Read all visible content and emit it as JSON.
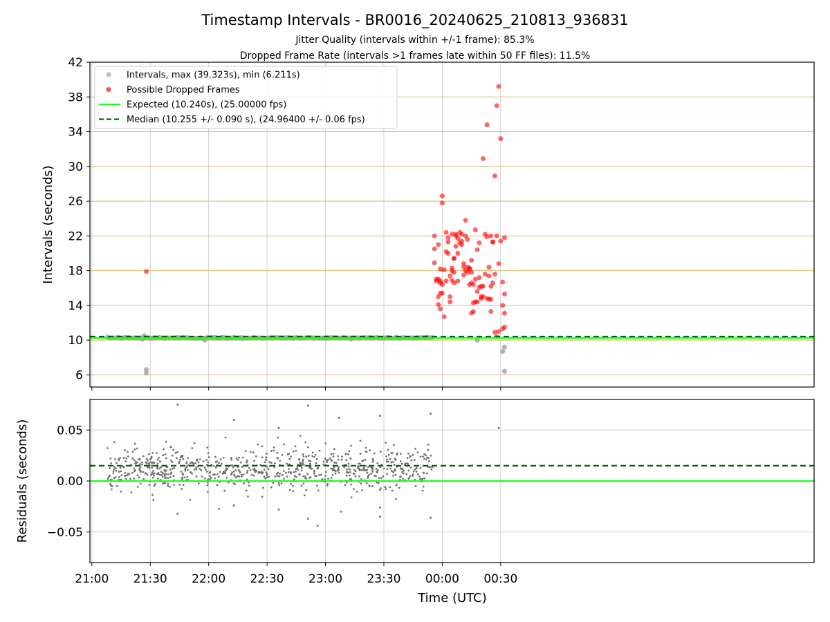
{
  "figure": {
    "title": "Timestamp Intervals - BR0016_20240625_210813_936831",
    "subtitle_1": "Jitter Quality (intervals within +/-1 frame): 85.3%",
    "subtitle_2": "Dropped Frame Rate (intervals >1 frames late within 50 FF files): 11.5%",
    "colors": {
      "intervals": "#a0a0a0",
      "dropped": "#ff0000",
      "expected": "#19ff19",
      "median": "#006400",
      "hgrid_top": "#d8b86a",
      "grid": "#cfcfcf",
      "residual_points": "#707070"
    }
  },
  "chart_data": [
    {
      "type": "scatter",
      "name": "intervals",
      "ylabel": "Intervals (seconds)",
      "xlabel": "",
      "ylim": [
        4.6,
        42
      ],
      "yticks": [
        6,
        10,
        14,
        18,
        22,
        26,
        30,
        34,
        38,
        42
      ],
      "ytick_labels": [
        "6",
        "10",
        "14",
        "18",
        "22",
        "26",
        "30",
        "34",
        "38",
        "42"
      ],
      "xlim_minutes_after_2100": [
        -1,
        371
      ],
      "grid": true,
      "legend_position": "top-left",
      "legend": [
        {
          "label": "Intervals, max (39.323s), min (6.211s)",
          "marker": "circle",
          "color": "#a0a0a0"
        },
        {
          "label": "Possible Dropped Frames",
          "marker": "circle",
          "color": "#ff0000"
        },
        {
          "label": "Expected (10.240s), (25.00000 fps)",
          "marker": "solid-line",
          "color": "#19ff19"
        },
        {
          "label": "Median (10.255 +/- 0.090 s), (24.96400 +/- 0.06 fps)",
          "marker": "dashed-line",
          "color": "#006400"
        }
      ],
      "expected_value": 10.24,
      "median_value": 10.255,
      "series": [
        {
          "name": "Intervals, max (39.323s), min (6.211s)",
          "normal_band": {
            "x_start": "21:08",
            "x_end": "23:55",
            "y": 10.26,
            "count": 981
          },
          "points": [
            {
              "x": "21:27",
              "y": 10.5
            },
            {
              "x": "21:26",
              "y": 10.1
            },
            {
              "x": "21:28",
              "y": 6.2
            },
            {
              "x": "21:28",
              "y": 6.6
            },
            {
              "x": "21:58",
              "y": 10.0
            },
            {
              "x": "22:13",
              "y": 10.3
            },
            {
              "x": "00:18",
              "y": 10.0
            },
            {
              "x": "00:31",
              "y": 8.7
            },
            {
              "x": "00:32",
              "y": 9.2
            },
            {
              "x": "00:32",
              "y": 6.4
            }
          ]
        },
        {
          "name": "Possible Dropped Frames",
          "points": [
            {
              "x": "21:28",
              "y": 17.9
            },
            {
              "x": "23:56",
              "y": 22.0
            },
            {
              "x": "23:56",
              "y": 20.5
            },
            {
              "x": "23:56",
              "y": 18.9
            },
            {
              "x": "23:57",
              "y": 17.0
            },
            {
              "x": "23:57",
              "y": 16.8
            },
            {
              "x": "23:58",
              "y": 21.0
            },
            {
              "x": "23:58",
              "y": 17.0
            },
            {
              "x": "23:58",
              "y": 15.0
            },
            {
              "x": "23:58",
              "y": 14.1
            },
            {
              "x": "23:59",
              "y": 16.8
            },
            {
              "x": "23:59",
              "y": 16.6
            },
            {
              "x": "23:59",
              "y": 13.6
            },
            {
              "x": "23:59",
              "y": 15.4
            },
            {
              "x": "23:59",
              "y": 18.2
            },
            {
              "x": "00:00",
              "y": 26.6
            },
            {
              "x": "00:00",
              "y": 25.8
            },
            {
              "x": "00:00",
              "y": 16.4
            },
            {
              "x": "00:00",
              "y": 15.4
            },
            {
              "x": "00:01",
              "y": 12.7
            },
            {
              "x": "00:01",
              "y": 18.1
            },
            {
              "x": "00:02",
              "y": 22.4
            },
            {
              "x": "00:02",
              "y": 20.2
            },
            {
              "x": "00:02",
              "y": 16.8
            },
            {
              "x": "00:03",
              "y": 21.8
            },
            {
              "x": "00:03",
              "y": 21.3
            },
            {
              "x": "00:03",
              "y": 20.0
            },
            {
              "x": "00:04",
              "y": 17.4
            },
            {
              "x": "00:04",
              "y": 15.0
            },
            {
              "x": "00:04",
              "y": 14.4
            },
            {
              "x": "00:05",
              "y": 18.3
            },
            {
              "x": "00:05",
              "y": 16.9
            },
            {
              "x": "00:05",
              "y": 22.2
            },
            {
              "x": "00:05",
              "y": 18.0
            },
            {
              "x": "00:06",
              "y": 16.6
            },
            {
              "x": "00:06",
              "y": 17.8
            },
            {
              "x": "00:06",
              "y": 19.4
            },
            {
              "x": "00:06",
              "y": 19.4
            },
            {
              "x": "00:07",
              "y": 22.2
            },
            {
              "x": "00:07",
              "y": 20.8
            },
            {
              "x": "00:07",
              "y": 22.0
            },
            {
              "x": "00:08",
              "y": 21.7
            },
            {
              "x": "00:08",
              "y": 20.0
            },
            {
              "x": "00:08",
              "y": 16.8
            },
            {
              "x": "00:09",
              "y": 22.4
            },
            {
              "x": "00:09",
              "y": 21.2
            },
            {
              "x": "00:10",
              "y": 22.2
            },
            {
              "x": "00:10",
              "y": 21.0
            },
            {
              "x": "00:10",
              "y": 21.4
            },
            {
              "x": "00:11",
              "y": 18.8
            },
            {
              "x": "00:11",
              "y": 18.4
            },
            {
              "x": "00:11",
              "y": 17.5
            },
            {
              "x": "00:12",
              "y": 23.8
            },
            {
              "x": "00:12",
              "y": 18.0
            },
            {
              "x": "00:12",
              "y": 22.0
            },
            {
              "x": "00:13",
              "y": 17.8
            },
            {
              "x": "00:13",
              "y": 18.4
            },
            {
              "x": "00:13",
              "y": 21.6
            },
            {
              "x": "00:14",
              "y": 18.2
            },
            {
              "x": "00:14",
              "y": 16.4
            },
            {
              "x": "00:14",
              "y": 18.3
            },
            {
              "x": "00:15",
              "y": 16.6
            },
            {
              "x": "00:15",
              "y": 17.8
            },
            {
              "x": "00:15",
              "y": 19.2
            },
            {
              "x": "00:15",
              "y": 13.1
            },
            {
              "x": "00:16",
              "y": 13.3
            },
            {
              "x": "00:16",
              "y": 16.4
            },
            {
              "x": "00:16",
              "y": 14.3
            },
            {
              "x": "00:17",
              "y": 22.7
            },
            {
              "x": "00:17",
              "y": 17.0
            },
            {
              "x": "00:17",
              "y": 14.4
            },
            {
              "x": "00:18",
              "y": 20.4
            },
            {
              "x": "00:18",
              "y": 15.6
            },
            {
              "x": "00:18",
              "y": 14.4
            },
            {
              "x": "00:19",
              "y": 21.2
            },
            {
              "x": "00:19",
              "y": 17.2
            },
            {
              "x": "00:19",
              "y": 16.1
            },
            {
              "x": "00:20",
              "y": 16.2
            },
            {
              "x": "00:20",
              "y": 15.0
            },
            {
              "x": "00:20",
              "y": 14.8
            },
            {
              "x": "00:21",
              "y": 15.0
            },
            {
              "x": "00:21",
              "y": 30.9
            },
            {
              "x": "00:21",
              "y": 16.2
            },
            {
              "x": "00:22",
              "y": 22.2
            },
            {
              "x": "00:22",
              "y": 17.6
            },
            {
              "x": "00:23",
              "y": 14.8
            },
            {
              "x": "00:23",
              "y": 34.8
            },
            {
              "x": "00:23",
              "y": 21.9
            },
            {
              "x": "00:24",
              "y": 18.4
            },
            {
              "x": "00:24",
              "y": 17.4
            },
            {
              "x": "00:24",
              "y": 14.7
            },
            {
              "x": "00:25",
              "y": 13.3
            },
            {
              "x": "00:25",
              "y": 14.7
            },
            {
              "x": "00:25",
              "y": 16.2
            },
            {
              "x": "00:25",
              "y": 22.0
            },
            {
              "x": "00:26",
              "y": 21.3
            },
            {
              "x": "00:26",
              "y": 16.6
            },
            {
              "x": "00:26",
              "y": 21.3
            },
            {
              "x": "00:27",
              "y": 28.9
            },
            {
              "x": "00:27",
              "y": 17.6
            },
            {
              "x": "00:27",
              "y": 10.9
            },
            {
              "x": "00:28",
              "y": 37.0
            },
            {
              "x": "00:28",
              "y": 10.4
            },
            {
              "x": "00:28",
              "y": 22.0
            },
            {
              "x": "00:29",
              "y": 11.0
            },
            {
              "x": "00:29",
              "y": 39.2
            },
            {
              "x": "00:29",
              "y": 18.8
            },
            {
              "x": "00:30",
              "y": 33.2
            },
            {
              "x": "00:30",
              "y": 21.4
            },
            {
              "x": "00:31",
              "y": 16.7
            },
            {
              "x": "00:31",
              "y": 14.0
            },
            {
              "x": "00:31",
              "y": 11.3
            },
            {
              "x": "00:32",
              "y": 15.3
            },
            {
              "x": "00:32",
              "y": 11.5
            },
            {
              "x": "00:32",
              "y": 13.1
            },
            {
              "x": "00:32",
              "y": 21.8
            }
          ]
        }
      ]
    },
    {
      "type": "scatter",
      "name": "residuals",
      "ylabel": "Residuals (seconds)",
      "xlabel": "Time (UTC)",
      "ylim": [
        -0.08,
        0.08
      ],
      "yticks": [
        0.05,
        0.0,
        -0.05
      ],
      "ytick_labels": [
        "0.05",
        "0.00",
        "−0.05"
      ],
      "xticks": [
        "21:00",
        "21:30",
        "22:00",
        "22:30",
        "23:00",
        "23:30",
        "00:00",
        "00:30"
      ],
      "grid": true,
      "expected_value": 0.0,
      "median_value": 0.015,
      "series": [
        {
          "name": "residuals",
          "bulk": {
            "x_start": "21:08",
            "x_end": "23:55",
            "center": 0.012,
            "spread": 0.012,
            "count": 981
          },
          "outliers": [
            {
              "x": "21:44",
              "y": 0.075
            },
            {
              "x": "21:44",
              "y": -0.032
            },
            {
              "x": "22:13",
              "y": 0.06
            },
            {
              "x": "22:13",
              "y": -0.024
            },
            {
              "x": "22:36",
              "y": 0.052
            },
            {
              "x": "22:36",
              "y": -0.028
            },
            {
              "x": "22:51",
              "y": 0.074
            },
            {
              "x": "22:51",
              "y": -0.037
            },
            {
              "x": "22:56",
              "y": -0.044
            },
            {
              "x": "23:07",
              "y": 0.062
            },
            {
              "x": "23:08",
              "y": -0.03
            },
            {
              "x": "23:28",
              "y": 0.064
            },
            {
              "x": "23:28",
              "y": -0.026
            },
            {
              "x": "23:28",
              "y": -0.035
            },
            {
              "x": "23:54",
              "y": 0.066
            },
            {
              "x": "23:54",
              "y": -0.036
            },
            {
              "x": "00:29",
              "y": 0.052
            }
          ]
        }
      ]
    }
  ]
}
